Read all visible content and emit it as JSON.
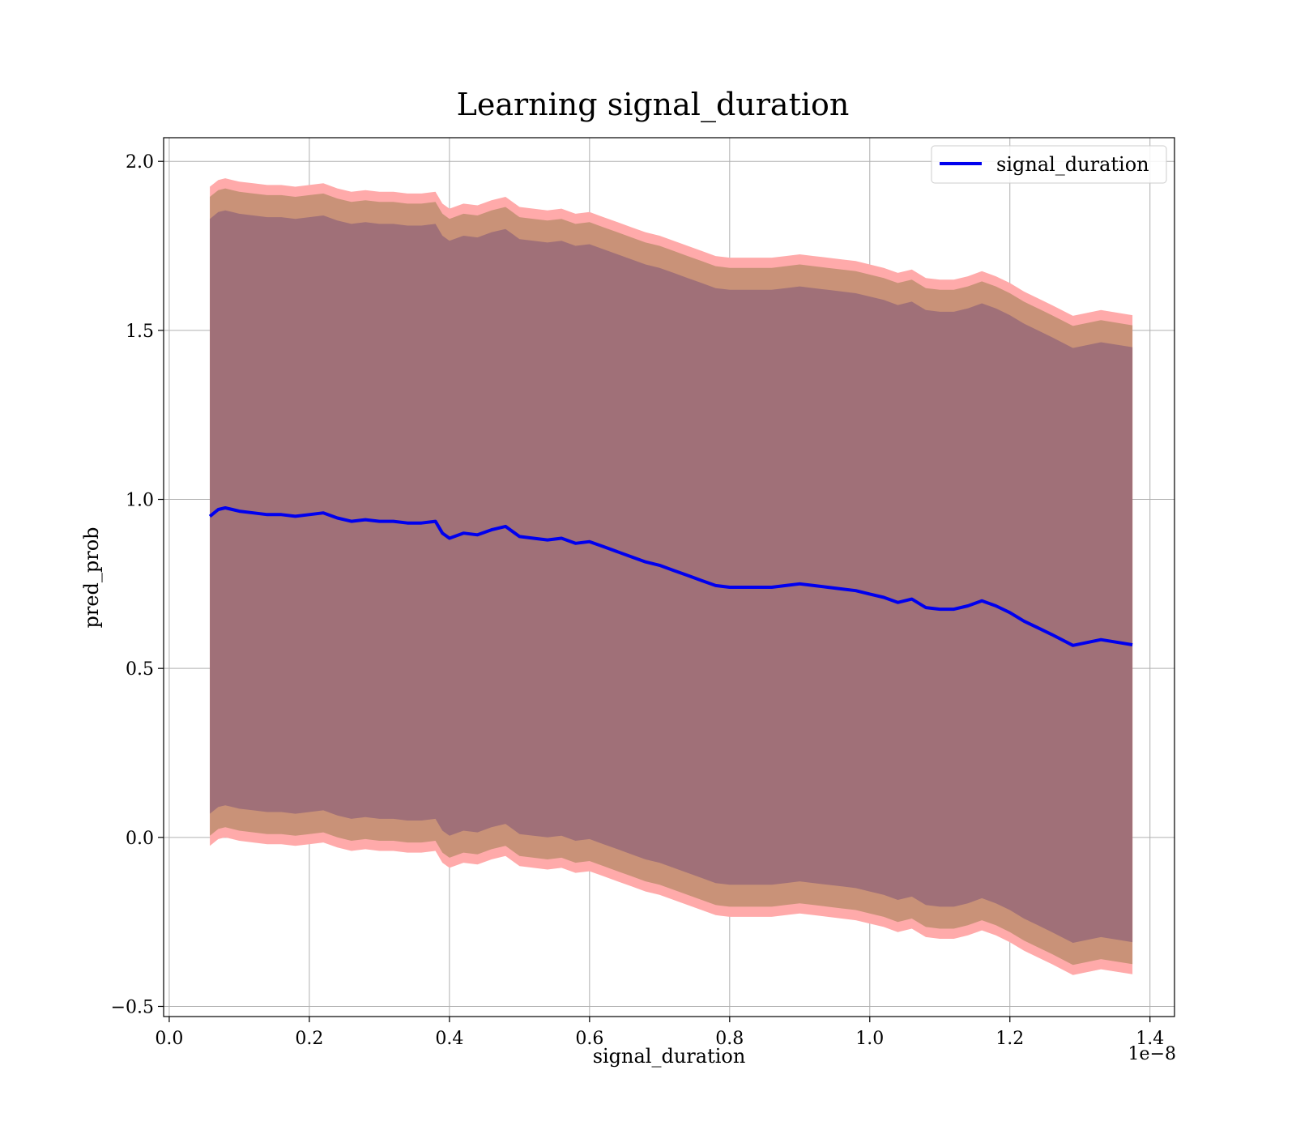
{
  "chart_data": {
    "type": "line",
    "title": "Learning signal_duration",
    "xlabel": "signal_duration",
    "ylabel": "pred_prob",
    "x_offset_label": "1e−8",
    "xlim": [
      -0.008,
      1.435
    ],
    "ylim": [
      -0.53,
      2.07
    ],
    "x_ticks": [
      0.0,
      0.2,
      0.4,
      0.6,
      0.8,
      1.0,
      1.2,
      1.4
    ],
    "x_tick_labels": [
      "0.0",
      "0.2",
      "0.4",
      "0.6",
      "0.8",
      "1.0",
      "1.2",
      "1.4"
    ],
    "y_ticks": [
      -0.5,
      0.0,
      0.5,
      1.0,
      1.5,
      2.0
    ],
    "y_tick_labels": [
      "−0.5",
      "0.0",
      "0.5",
      "1.0",
      "1.5",
      "2.0"
    ],
    "grid": true,
    "legend_position": "top-right",
    "colors": {
      "line": "#0000ee",
      "band_outer": "#ffaaaa",
      "band_middle": "#c99278",
      "band_inner": "#a07078",
      "grid": "#b0b0b0"
    },
    "series": [
      {
        "name": "signal_duration",
        "x": [
          0.058,
          0.07,
          0.08,
          0.09,
          0.1,
          0.12,
          0.14,
          0.16,
          0.18,
          0.2,
          0.22,
          0.24,
          0.26,
          0.28,
          0.3,
          0.32,
          0.34,
          0.36,
          0.38,
          0.39,
          0.4,
          0.42,
          0.44,
          0.46,
          0.48,
          0.5,
          0.52,
          0.54,
          0.56,
          0.58,
          0.6,
          0.62,
          0.64,
          0.66,
          0.68,
          0.7,
          0.72,
          0.74,
          0.76,
          0.78,
          0.8,
          0.82,
          0.84,
          0.86,
          0.88,
          0.9,
          0.92,
          0.94,
          0.96,
          0.98,
          1.0,
          1.02,
          1.04,
          1.06,
          1.08,
          1.1,
          1.12,
          1.14,
          1.16,
          1.18,
          1.2,
          1.22,
          1.24,
          1.26,
          1.29,
          1.33,
          1.375
        ],
        "values": [
          0.95,
          0.97,
          0.975,
          0.97,
          0.965,
          0.96,
          0.955,
          0.955,
          0.95,
          0.955,
          0.96,
          0.945,
          0.935,
          0.94,
          0.935,
          0.935,
          0.93,
          0.93,
          0.935,
          0.9,
          0.885,
          0.9,
          0.895,
          0.91,
          0.92,
          0.89,
          0.885,
          0.88,
          0.885,
          0.87,
          0.875,
          0.86,
          0.845,
          0.83,
          0.815,
          0.805,
          0.79,
          0.775,
          0.76,
          0.745,
          0.74,
          0.74,
          0.74,
          0.74,
          0.745,
          0.75,
          0.745,
          0.74,
          0.735,
          0.73,
          0.72,
          0.71,
          0.695,
          0.705,
          0.68,
          0.675,
          0.675,
          0.685,
          0.7,
          0.685,
          0.665,
          0.64,
          0.62,
          0.6,
          0.568,
          0.585,
          0.57
        ]
      }
    ],
    "bands": [
      {
        "label": "outer",
        "upper_offset": 0.975,
        "lower_offset": 0.975
      },
      {
        "label": "middle",
        "upper_offset": 0.945,
        "lower_offset": 0.945
      },
      {
        "label": "inner",
        "upper_offset": 0.88,
        "lower_offset": 0.88
      }
    ]
  }
}
